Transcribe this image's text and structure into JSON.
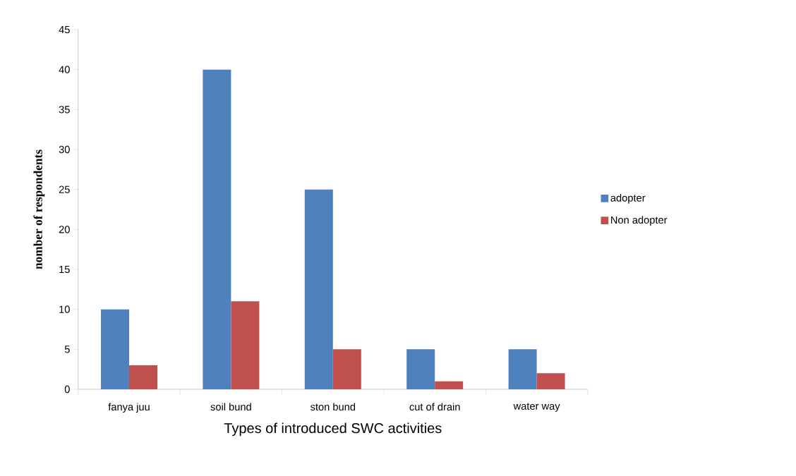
{
  "chart_data": {
    "type": "bar",
    "xlabel": "Types of introduced SWC activities",
    "ylabel": "nomber of respondents",
    "categories": [
      "fanya juu",
      "soil bund",
      "ston bund",
      "cut of drain",
      "water way"
    ],
    "series": [
      {
        "name": "adopter",
        "color": "#4f81bd",
        "values": [
          10,
          40,
          25,
          5,
          5
        ]
      },
      {
        "name": "Non adopter",
        "color": "#c0504d",
        "values": [
          3,
          11,
          5,
          1,
          2
        ]
      }
    ],
    "ylim": [
      0,
      45
    ],
    "yticks": [
      0,
      5,
      10,
      15,
      20,
      25,
      30,
      35,
      40,
      45
    ],
    "grid": false,
    "legend": "right"
  }
}
